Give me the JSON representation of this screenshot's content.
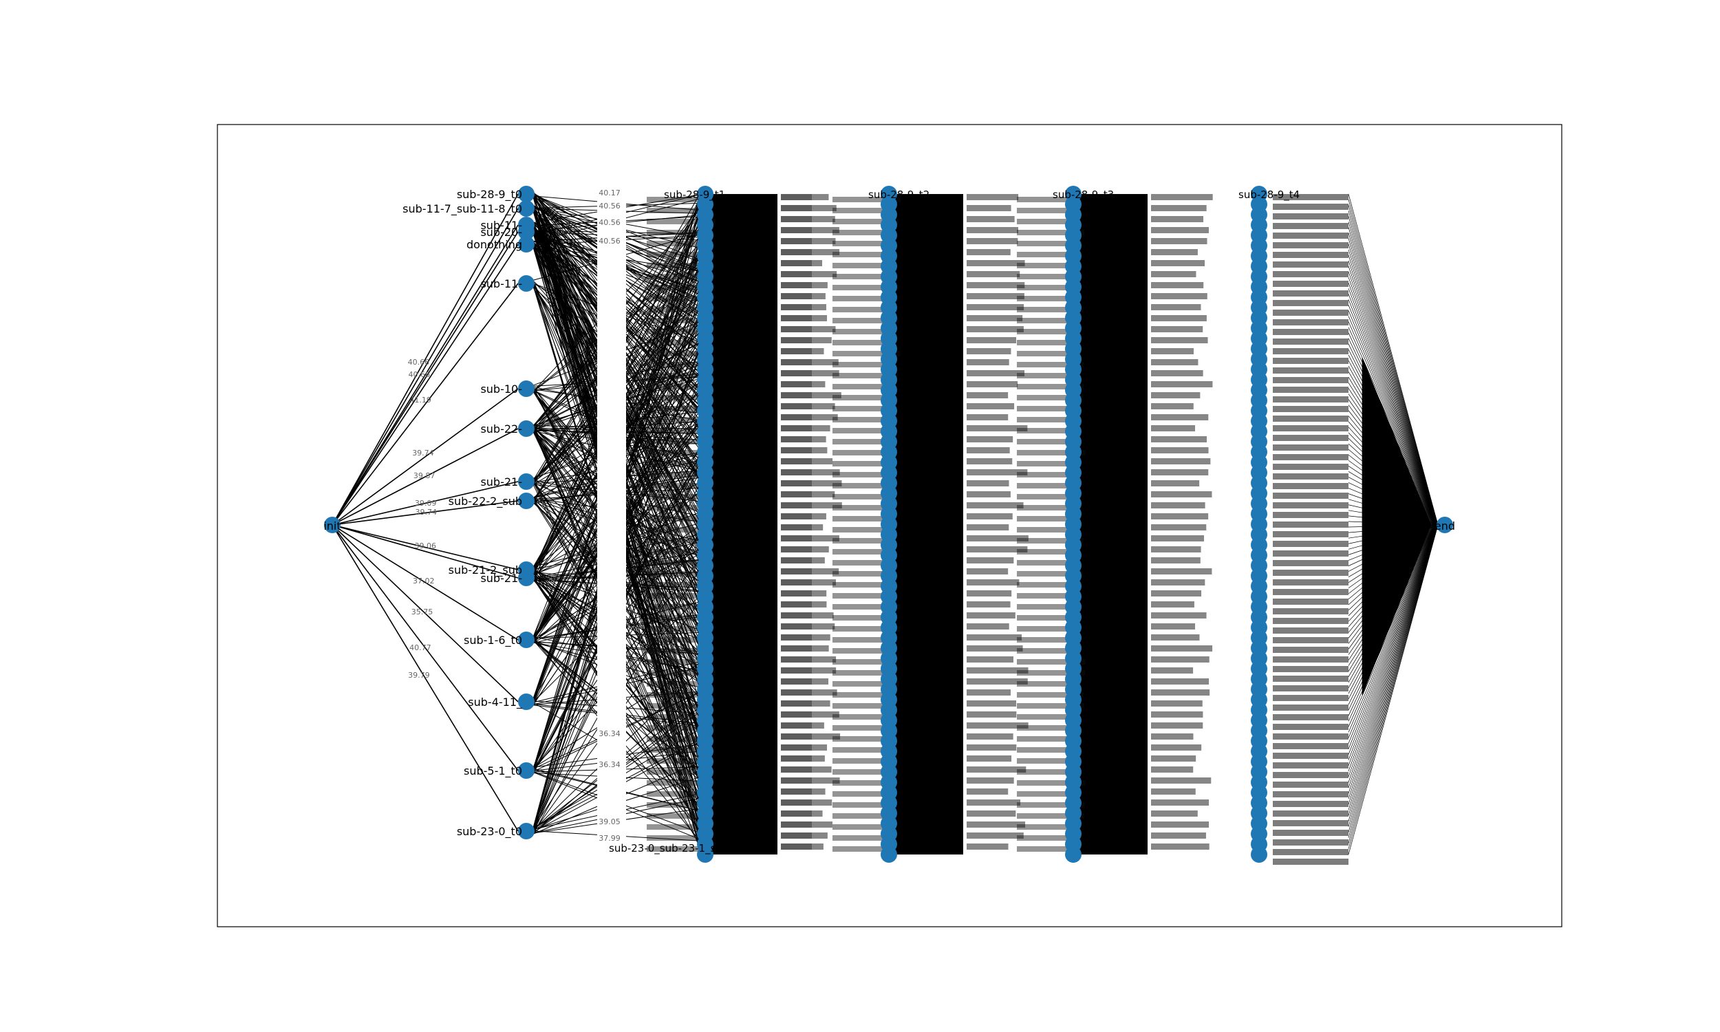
{
  "figure": {
    "type": "layered-graph",
    "node_color": "#1f77b4",
    "edge_color": "#000000",
    "frame_color": "#000000"
  },
  "nodes": {
    "start": "init",
    "end": "end",
    "layer_t0": [
      "sub-28-9_t0",
      "sub-11-7_sub-11-8_t0",
      "sub-11-",
      "sub-20-",
      "donothing",
      "sub-11-",
      "sub-10-",
      "sub-22-",
      "sub-21-",
      "sub-22-2_sub",
      "sub-21-2_sub",
      "sub-21-",
      "sub-1-6_t0",
      "sub-4-11_",
      "sub-5-1_t0",
      "sub-23-0_t0"
    ],
    "layer_t1_visible": [
      "sub-28-9_t1",
      "sub-23-0_sub-23-1_sub-21-5_t1"
    ],
    "layer_t2_visible": [
      "sub-28-9_t2"
    ],
    "layer_t3_visible": [
      "sub-28-9_t3"
    ],
    "layer_t4_visible": [
      "sub-28-9_t4"
    ]
  },
  "edge_labels_init": [
    "40.66",
    "40.66",
    "41.19",
    "39.74",
    "39.87",
    "39.09",
    "39.74",
    "39.06",
    "37.02",
    "35.75",
    "40.77",
    "39.79"
  ],
  "edge_labels_t0_t1": [
    "40.17",
    "40.56",
    "40.56",
    "40.56",
    "36.34",
    "36.34",
    "39.05",
    "37.99"
  ],
  "layer_suffixes": [
    "t1",
    "t2",
    "t3",
    "t4"
  ]
}
